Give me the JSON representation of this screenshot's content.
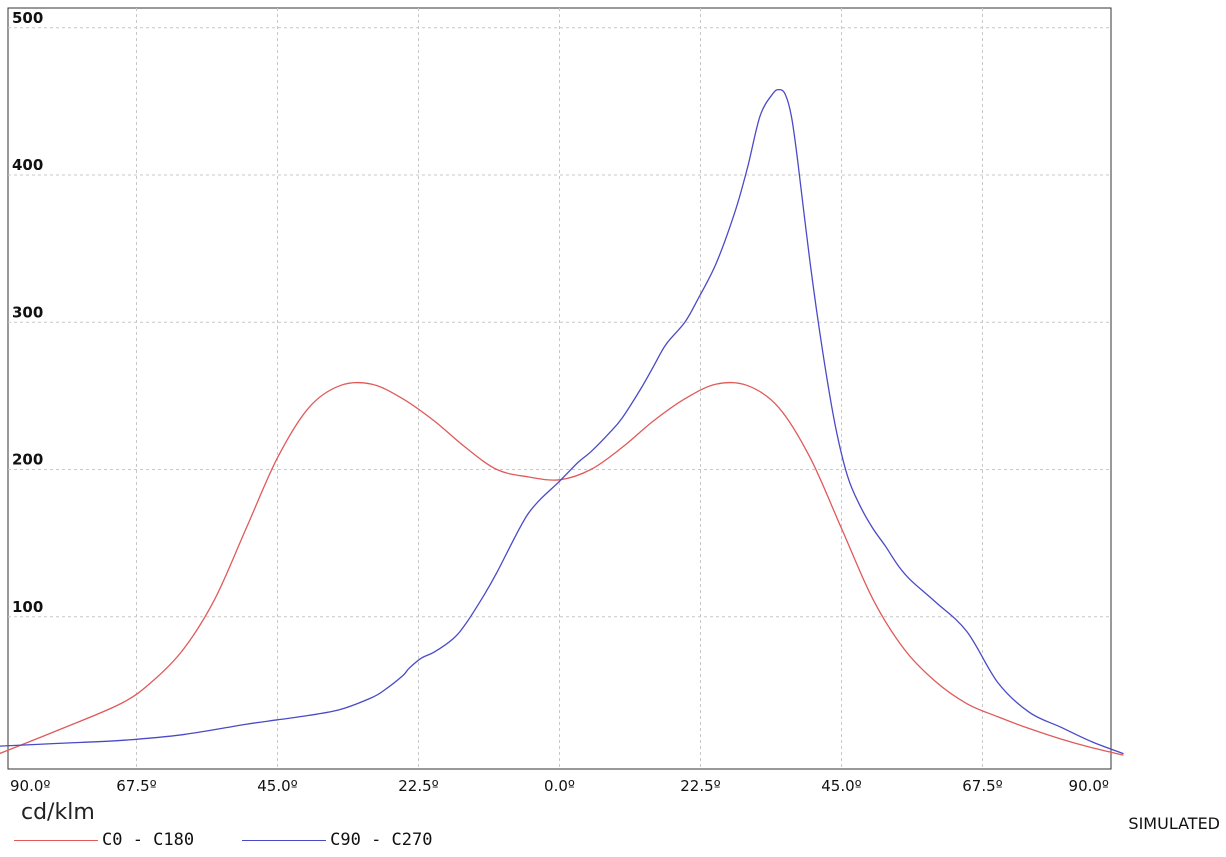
{
  "chart_data": {
    "type": "line",
    "unit_label": "cd/klm",
    "note": "SIMULATED",
    "x_tick_labels": [
      "90.0º",
      "67.5º",
      "45.0º",
      "22.5º",
      "0.0º",
      "22.5º",
      "45.0º",
      "67.5º",
      "90.0º"
    ],
    "x_tick_values": [
      -90,
      -67.5,
      -45,
      -22.5,
      0,
      22.5,
      45,
      67.5,
      90
    ],
    "y_ticks": [
      100,
      200,
      300,
      400,
      500
    ],
    "xlim": [
      -90,
      90
    ],
    "ylim": [
      0,
      500
    ],
    "grid": true,
    "legend_position": "bottom-left",
    "series": [
      {
        "name": "C0 - C180",
        "color": "#e05a5a",
        "x": [
          -90,
          -80,
          -70,
          -65,
          -60,
          -55,
          -50,
          -45,
          -40,
          -35,
          -30,
          -25,
          -20,
          -15,
          -10,
          -5,
          0,
          5,
          10,
          15,
          20,
          25,
          30,
          35,
          40,
          45,
          50,
          55,
          60,
          65,
          70,
          75,
          80,
          85,
          90
        ],
        "y": [
          6,
          23,
          41,
          56,
          78,
          112,
          160,
          208,
          242,
          257,
          258,
          248,
          233,
          215,
          200,
          195,
          193,
          200,
          215,
          233,
          248,
          258,
          257,
          242,
          208,
          160,
          112,
          78,
          56,
          41,
          32,
          24,
          17,
          11,
          6
        ]
      },
      {
        "name": "C90 - C270",
        "color": "#4a4ac8",
        "x": [
          -90,
          -80,
          -70,
          -60,
          -50,
          -45,
          -40,
          -35,
          -30,
          -28,
          -25,
          -24,
          -22,
          -20,
          -17,
          -15,
          -12,
          -10,
          -7,
          -5,
          -3,
          0,
          3,
          5,
          8,
          10,
          13,
          15,
          17,
          20,
          22,
          25,
          28,
          30,
          32,
          34,
          35,
          36,
          37,
          38,
          40,
          42,
          44,
          46,
          48,
          50,
          52,
          54,
          56,
          60,
          65,
          70,
          75,
          80,
          85,
          90
        ],
        "y": [
          12,
          14,
          16,
          20,
          27,
          30,
          33,
          37,
          45,
          50,
          60,
          65,
          72,
          76,
          85,
          95,
          115,
          130,
          155,
          170,
          180,
          192,
          205,
          212,
          225,
          235,
          255,
          270,
          285,
          300,
          315,
          340,
          375,
          405,
          440,
          455,
          458,
          455,
          440,
          410,
          340,
          280,
          230,
          195,
          175,
          160,
          148,
          135,
          125,
          110,
          90,
          55,
          35,
          25,
          15,
          7
        ]
      }
    ]
  }
}
